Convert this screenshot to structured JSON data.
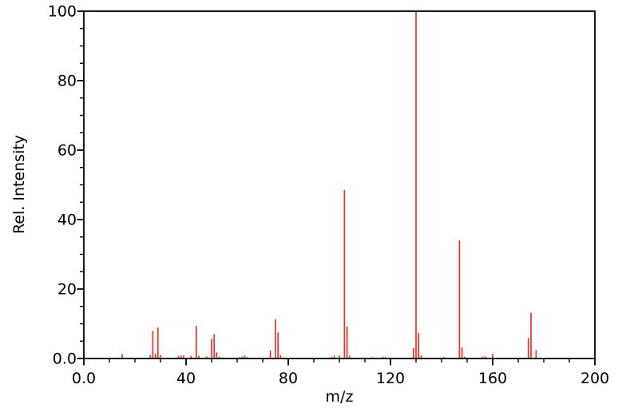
{
  "chart_data": {
    "type": "bar",
    "subtype": "mass-spectrum-stick-plot",
    "title": "",
    "xlabel": "m/z",
    "ylabel": "Rel. Intensity",
    "xlim": [
      0,
      200
    ],
    "ylim": [
      0,
      100
    ],
    "x_major_ticks": [
      0,
      40,
      80,
      120,
      160,
      200
    ],
    "x_major_tick_labels": [
      "0.0",
      "40",
      "80",
      "120",
      "160",
      "200"
    ],
    "x_minor_tick_step": 10,
    "y_major_ticks": [
      0,
      20,
      40,
      60,
      80,
      100
    ],
    "y_major_tick_labels": [
      "0.0",
      "20",
      "40",
      "60",
      "80",
      "100"
    ],
    "y_minor_tick_step": 5,
    "grid": false,
    "legend": null,
    "bar_color": "#f0312b",
    "frame_color": "#000000",
    "background_color": "#ffffff",
    "peaks": [
      [
        15,
        1.3
      ],
      [
        26,
        1.0
      ],
      [
        27,
        7.9
      ],
      [
        28,
        1.4
      ],
      [
        29,
        8.9
      ],
      [
        30,
        1.0
      ],
      [
        37,
        0.7
      ],
      [
        38,
        0.9
      ],
      [
        39,
        0.9
      ],
      [
        42,
        0.8
      ],
      [
        44,
        9.4
      ],
      [
        45,
        0.8
      ],
      [
        48,
        0.6
      ],
      [
        50,
        5.6
      ],
      [
        51,
        7.0
      ],
      [
        52,
        1.8
      ],
      [
        53,
        0.5
      ],
      [
        61,
        0.4
      ],
      [
        62,
        0.6
      ],
      [
        63,
        0.8
      ],
      [
        64,
        0.4
      ],
      [
        73,
        2.3
      ],
      [
        75,
        11.3
      ],
      [
        76,
        7.5
      ],
      [
        77,
        0.9
      ],
      [
        97,
        0.5
      ],
      [
        98,
        0.8
      ],
      [
        100,
        0.9
      ],
      [
        102,
        48.5
      ],
      [
        103,
        9.2
      ],
      [
        104,
        0.8
      ],
      [
        110,
        0.3
      ],
      [
        113,
        0.4
      ],
      [
        117,
        0.5
      ],
      [
        118,
        0.4
      ],
      [
        129,
        3.0
      ],
      [
        130,
        100.0
      ],
      [
        131,
        7.4
      ],
      [
        132,
        0.9
      ],
      [
        141,
        0.4
      ],
      [
        147,
        34.0
      ],
      [
        148,
        3.2
      ],
      [
        149,
        0.5
      ],
      [
        156,
        0.5
      ],
      [
        157,
        0.6
      ],
      [
        160,
        1.4
      ],
      [
        174,
        5.9
      ],
      [
        175,
        13.2
      ],
      [
        177,
        2.4
      ]
    ]
  }
}
